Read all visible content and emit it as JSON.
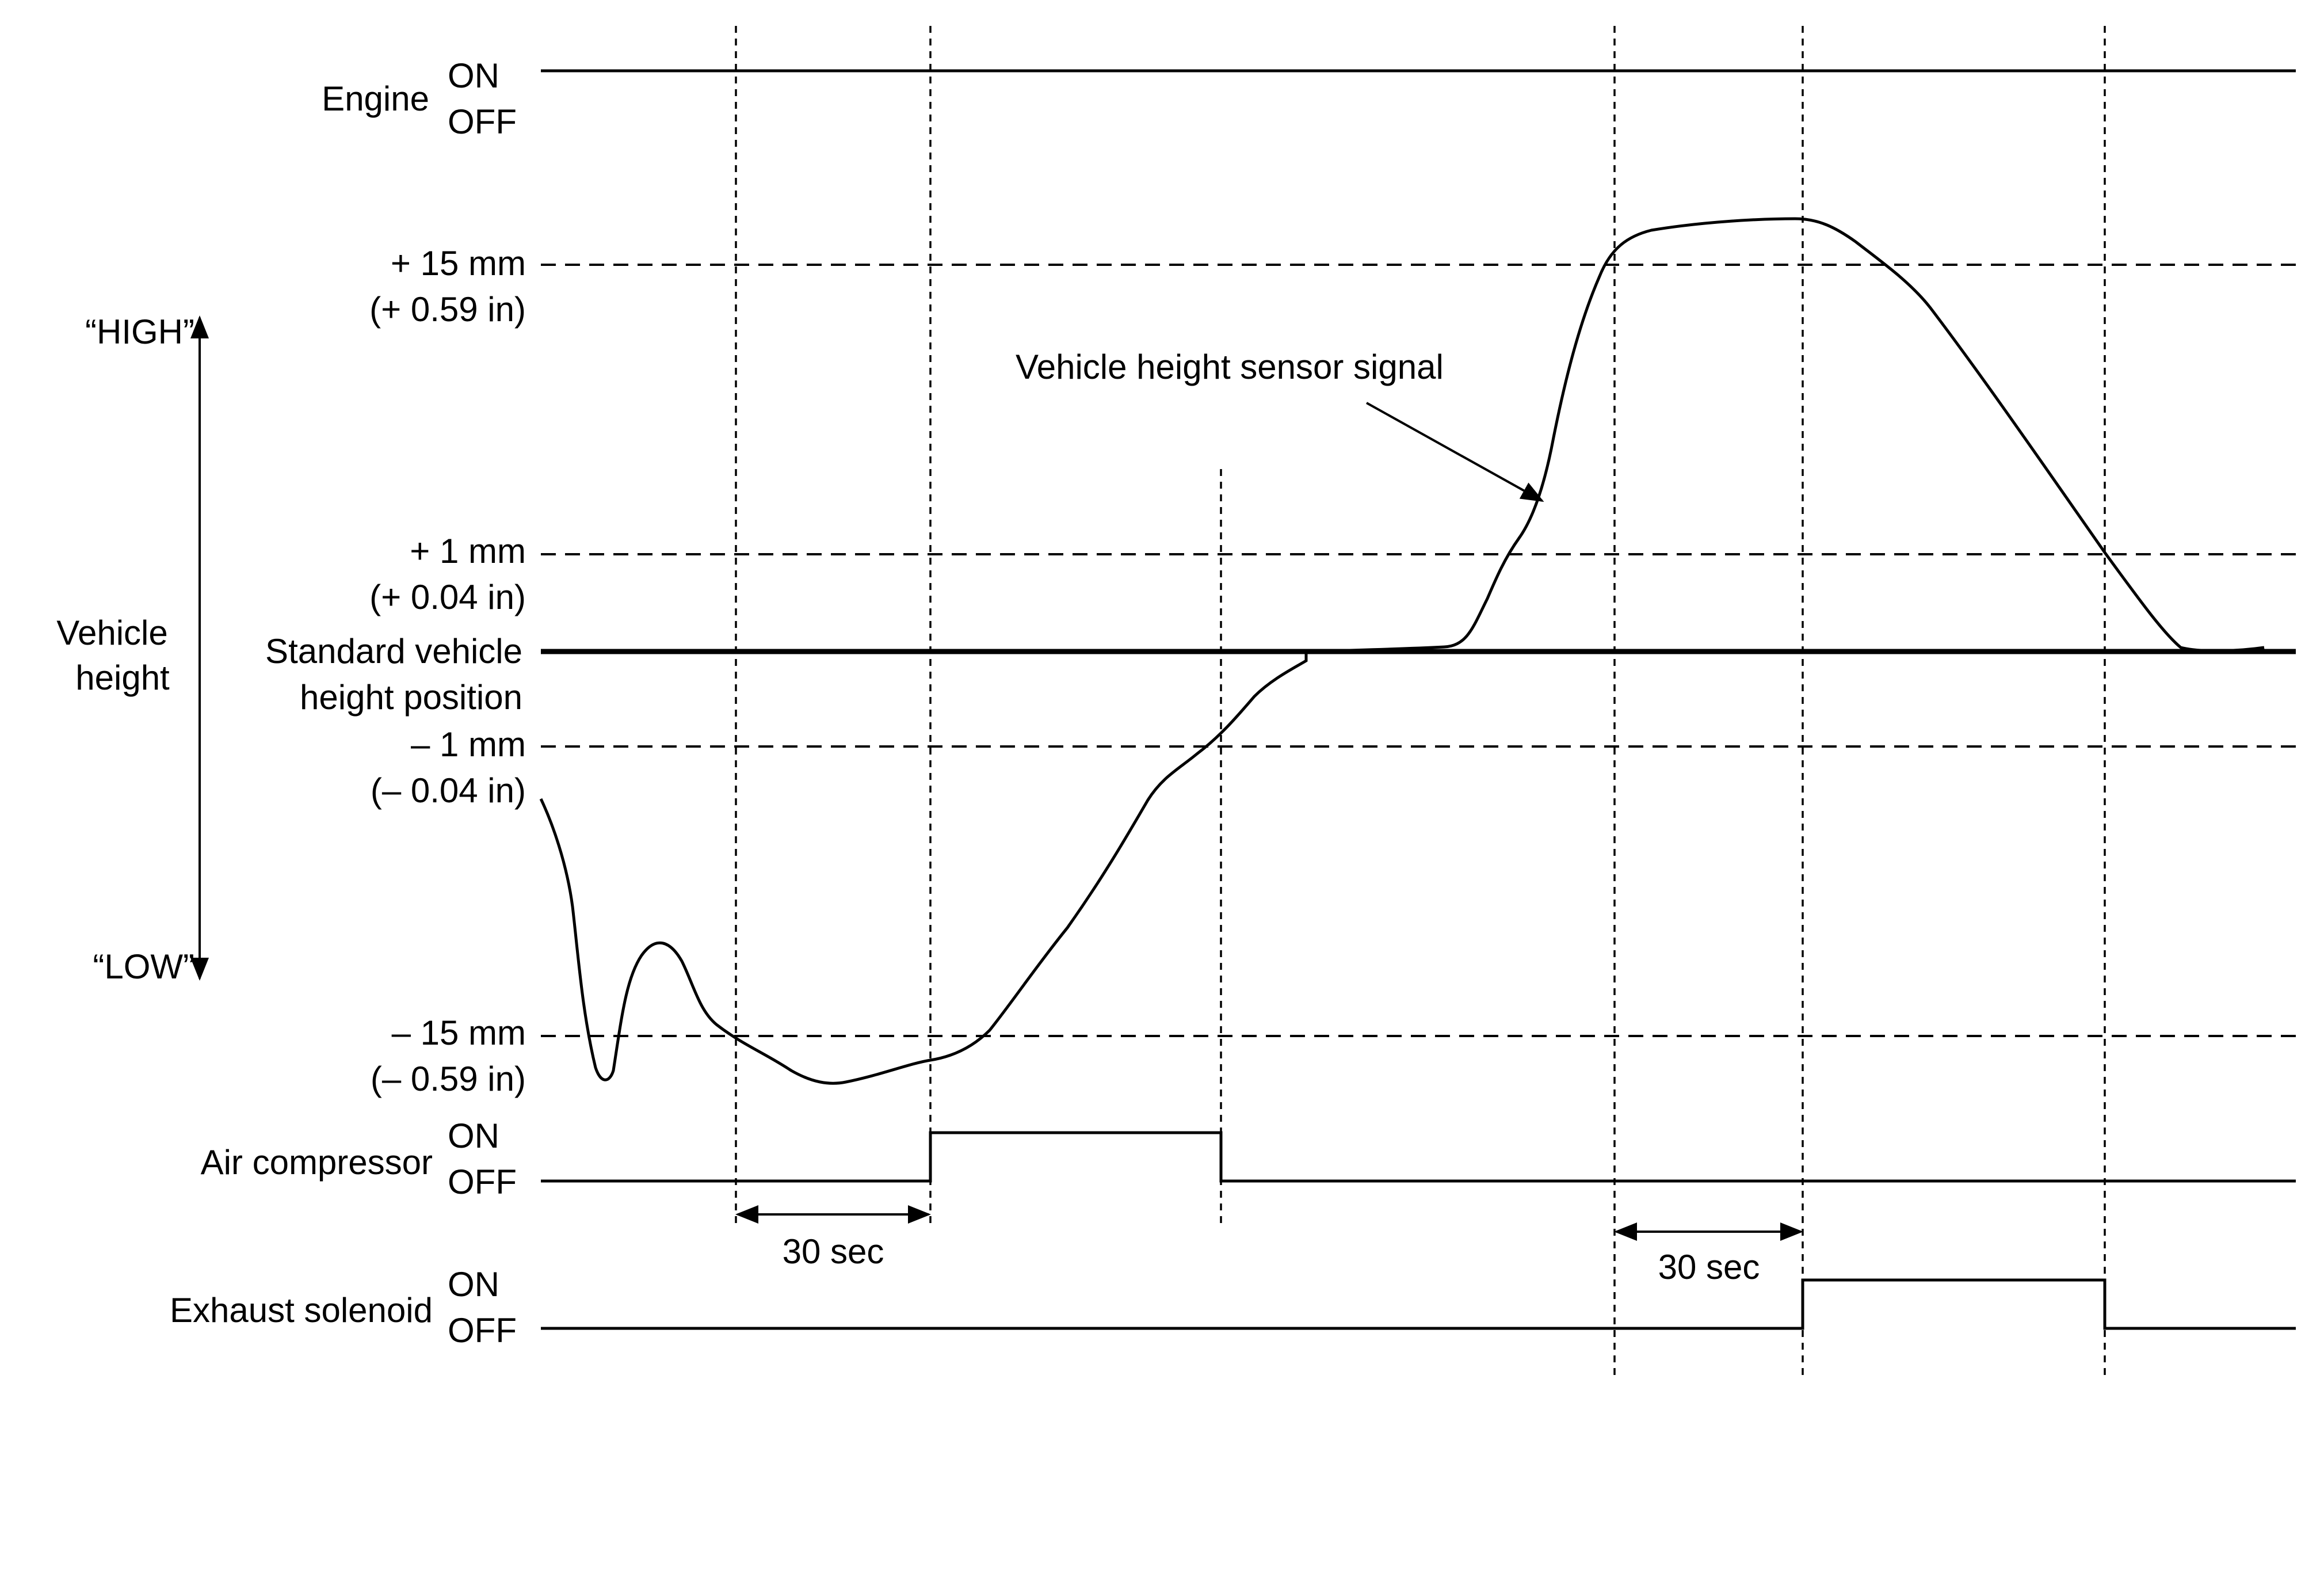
{
  "labels": {
    "engine": "Engine",
    "engine_on": "ON",
    "engine_off": "OFF",
    "high": "“HIGH”",
    "low": "“LOW”",
    "vehicle_height_line1": "Vehicle",
    "vehicle_height_line2": "height",
    "plus15_mm": "+ 15 mm",
    "plus15_in": "(+ 0.59 in)",
    "plus1_mm": "+ 1 mm",
    "plus1_in": "(+ 0.04 in)",
    "standard_line1": "Standard vehicle",
    "standard_line2": "height position",
    "minus1_mm": "– 1 mm",
    "minus1_in": "(– 0.04 in)",
    "minus15_mm": "– 15 mm",
    "minus15_in": "(– 0.59 in)",
    "air_compressor": "Air compressor",
    "air_on": "ON",
    "air_off": "OFF",
    "exhaust_solenoid": "Exhaust solenoid",
    "exhaust_on": "ON",
    "exhaust_off": "OFF",
    "sensor_signal": "Vehicle height sensor signal",
    "interval_1": "30 sec",
    "interval_2": "30 sec"
  }
}
